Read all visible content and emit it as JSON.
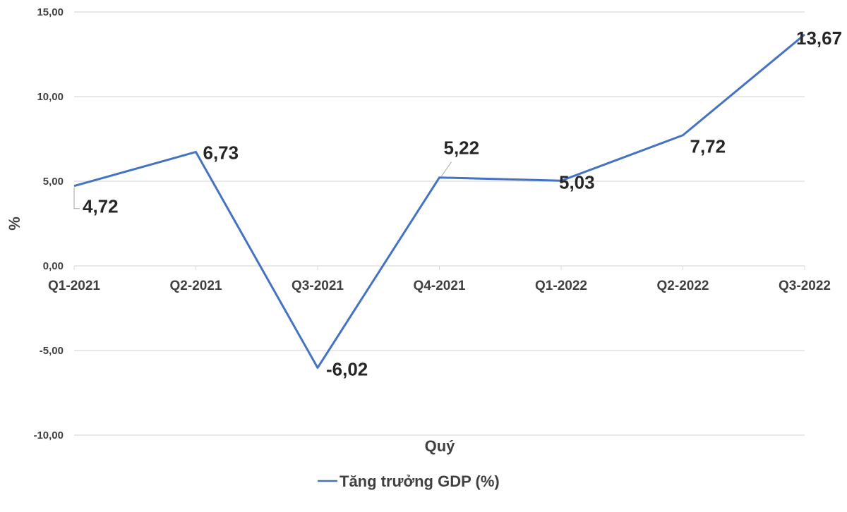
{
  "chart_data": {
    "type": "line",
    "title": "",
    "xlabel": "Quý",
    "ylabel": "%",
    "categories": [
      "Q1-2021",
      "Q2-2021",
      "Q3-2021",
      "Q4-2021",
      "Q1-2022",
      "Q2-2022",
      "Q3-2022"
    ],
    "series": [
      {
        "name": "Tăng trưởng GDP (%)",
        "color": "#4472C4",
        "values": [
          4.72,
          6.73,
          -6.02,
          5.22,
          5.03,
          7.72,
          13.67
        ],
        "labels": [
          "4,72",
          "6,73",
          "-6,02",
          "5,22",
          "5,03",
          "7,72",
          "13,67"
        ]
      }
    ],
    "ylim": [
      -10,
      15
    ],
    "yticks": [
      15,
      10,
      5,
      0,
      -5,
      -10
    ],
    "ytick_labels": [
      "15,00",
      "10,00",
      "5,00",
      "0,00",
      "-5,00",
      "-10,00"
    ],
    "grid": true,
    "legend_position": "bottom"
  }
}
